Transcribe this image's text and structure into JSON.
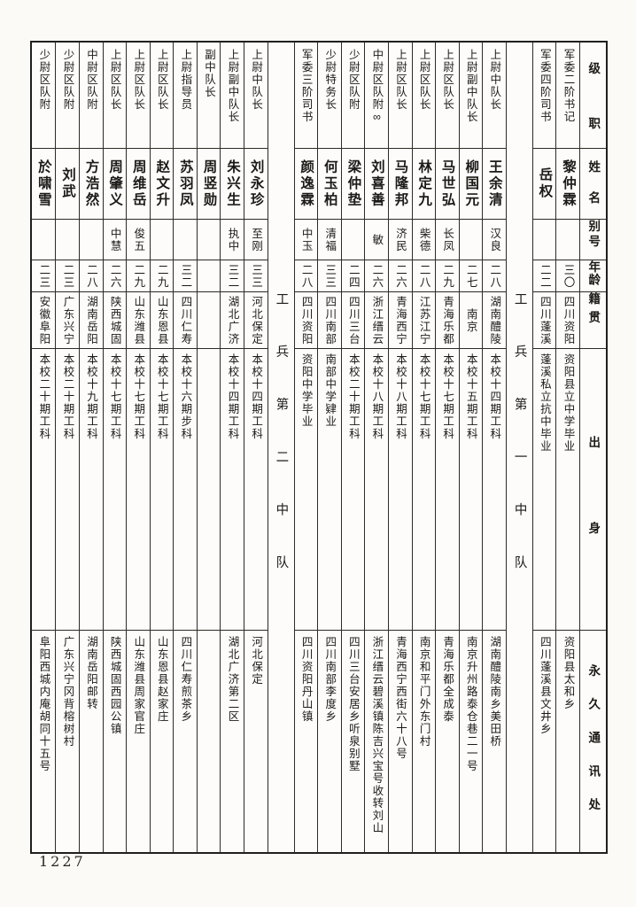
{
  "page": {
    "number": "1227"
  },
  "header": {
    "labels": {
      "rank": "级职",
      "name": "姓名",
      "alias": "别号",
      "age": "年龄",
      "native": "籍贯",
      "origin": "出身",
      "address": "永久通讯处"
    }
  },
  "table": {
    "reading_order": "right-to-left, vertical text",
    "columns": [
      {
        "type": "person",
        "rank": "军委二阶书记",
        "name": "黎仲霖",
        "alias": "",
        "age": "三〇",
        "native": "四川资阳",
        "origin": "资阳县立中学毕业",
        "address": "资阳县太和乡"
      },
      {
        "type": "person",
        "rank": "军委四阶司书",
        "name": "岳权",
        "alias": "",
        "age": "二二",
        "native": "四川蓬溪",
        "origin": "蓬溪私立抗中毕业",
        "address": "四川蓬溪县文井乡"
      },
      {
        "type": "divider",
        "label": "工兵第一中队"
      },
      {
        "type": "person",
        "rank": "上尉中队长",
        "name": "王余清",
        "alias": "汉良",
        "age": "二八",
        "native": "湖南醴陵",
        "origin": "本校十四期工科",
        "address": "湖南醴陵南乡美田桥"
      },
      {
        "type": "person",
        "rank": "上尉副中队长",
        "name": "柳国元",
        "alias": "",
        "age": "二七",
        "native": "南京",
        "origin": "本校十五期工科",
        "address": "南京升州路泰仓巷二一号"
      },
      {
        "type": "person",
        "rank": "上尉区队长",
        "name": "马世弘",
        "alias": "长凤",
        "age": "二九",
        "native": "青海乐都",
        "origin": "本校十七期工科",
        "address": "青海乐都全成泰"
      },
      {
        "type": "person",
        "rank": "上尉区队长",
        "name": "林定九",
        "alias": "柴德",
        "age": "二八",
        "native": "江苏江宁",
        "origin": "本校十七期工科",
        "address": "南京和平门外东门村"
      },
      {
        "type": "person",
        "rank": "上尉区队长",
        "name": "马隆邦",
        "alias": "济民",
        "age": "二六",
        "native": "青海西宁",
        "origin": "本校十八期工科",
        "address": "青海西宁西街六十八号"
      },
      {
        "type": "person",
        "rank": "中尉区队附∞",
        "name": "刘喜善",
        "alias": "敏",
        "age": "二六",
        "native": "浙江缙云",
        "origin": "本校十八期工科",
        "address": "浙江缙云碧溪镇陈吉兴宝号收转刘山"
      },
      {
        "type": "person",
        "rank": "少尉区队附",
        "name": "梁仲垫",
        "alias": "",
        "age": "二四",
        "native": "四川三台",
        "origin": "本校二十期工科",
        "address": "四川三台安居乡听泉别墅"
      },
      {
        "type": "person",
        "rank": "少尉特务长",
        "name": "何玉柏",
        "alias": "清福",
        "age": "三三",
        "native": "四川南部",
        "origin": "南部中学肄业",
        "address": "四川南部李度乡"
      },
      {
        "type": "person",
        "rank": "军委三阶司书",
        "name": "颜逸霖",
        "alias": "中玉",
        "age": "二八",
        "native": "四川资阳",
        "origin": "资阳中学毕业",
        "address": "四川资阳丹山镇"
      },
      {
        "type": "divider",
        "label": "工兵第二中队"
      },
      {
        "type": "person",
        "rank": "上尉中队长",
        "name": "刘永珍",
        "alias": "至刚",
        "age": "三三",
        "native": "河北保定",
        "origin": "本校十四期工科",
        "address": "河北保定"
      },
      {
        "type": "person",
        "rank": "上尉副中队长",
        "name": "朱兴生",
        "alias": "执中",
        "age": "三二",
        "native": "湖北广济",
        "origin": "本校十四期工科",
        "address": "湖北广济第二区"
      },
      {
        "type": "person",
        "rank": "副中队长",
        "name": "周竖勋",
        "alias": "",
        "age": "",
        "native": "",
        "origin": "",
        "address": ""
      },
      {
        "type": "person",
        "rank": "上尉指导员",
        "name": "苏羽凤",
        "alias": "",
        "age": "三二",
        "native": "四川仁寿",
        "origin": "本校十六期步科",
        "address": "四川仁寿煎茶乡"
      },
      {
        "type": "person",
        "rank": "上尉区队长",
        "name": "赵文升",
        "alias": "",
        "age": "二九",
        "native": "山东恩县",
        "origin": "本校十七期工科",
        "address": "山东恩县赵家庄"
      },
      {
        "type": "person",
        "rank": "上尉区队长",
        "name": "周维岳",
        "alias": "俊五",
        "age": "二九",
        "native": "山东潍县",
        "origin": "本校十七期工科",
        "address": "山东潍县周家官庄"
      },
      {
        "type": "person",
        "rank": "上尉区队长",
        "name": "周肇义",
        "alias": "中慧",
        "age": "二六",
        "native": "陕西城固",
        "origin": "本校十七期工科",
        "address": "陕西城固西园公镇"
      },
      {
        "type": "person",
        "rank": "中尉区队附",
        "name": "方浩然",
        "alias": "",
        "age": "二八",
        "native": "湖南岳阳",
        "origin": "本校十九期工科",
        "address": "湖南岳阳邮转"
      },
      {
        "type": "person",
        "rank": "少尉区队附",
        "name": "刘武",
        "alias": "",
        "age": "二三",
        "native": "广东兴宁",
        "origin": "本校二十期工科",
        "address": "广东兴宁冈背榕树村"
      },
      {
        "type": "person",
        "rank": "少尉区队附",
        "name": "於啸雪",
        "alias": "",
        "age": "二三",
        "native": "安徽阜阳",
        "origin": "本校二十期工科",
        "address": "阜阳西城内庵胡同十五号"
      }
    ]
  }
}
